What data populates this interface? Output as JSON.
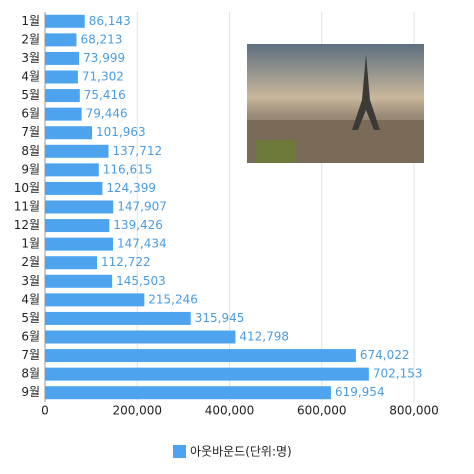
{
  "chart_data": {
    "type": "bar",
    "orientation": "horizontal",
    "categories": [
      "1월",
      "2월",
      "3월",
      "4월",
      "5월",
      "6월",
      "7월",
      "8월",
      "9월",
      "10월",
      "11월",
      "12월",
      "1월",
      "2월",
      "3월",
      "4월",
      "5월",
      "6월",
      "7월",
      "8월",
      "9월"
    ],
    "series": [
      {
        "name": "아웃바운드(단위:명)",
        "color": "#4da3ee",
        "values": [
          86143,
          68213,
          73999,
          71302,
          75416,
          79446,
          101963,
          137712,
          116615,
          124399,
          147907,
          139426,
          147434,
          112722,
          145503,
          215246,
          315945,
          412798,
          674022,
          702153,
          619954
        ],
        "value_labels": [
          "86,143",
          "68,213",
          "73,999",
          "71,302",
          "75,416",
          "79,446",
          "101,963",
          "137,712",
          "116,615",
          "124,399",
          "147,907",
          "139,426",
          "147,434",
          "112,722",
          "145,503",
          "215,246",
          "315,945",
          "412,798",
          "674,022",
          "702,153",
          "619,954"
        ]
      }
    ],
    "xlim": [
      0,
      800000
    ],
    "xticks": [
      0,
      {
        "value": 200000,
        "label": "200,000"
      },
      {
        "value": 400000,
        "label": "400,000"
      },
      {
        "value": 600000,
        "label": "600,000"
      },
      {
        "value": 800000,
        "label": "800,000"
      }
    ],
    "grid": true,
    "legend": "bottom"
  }
}
